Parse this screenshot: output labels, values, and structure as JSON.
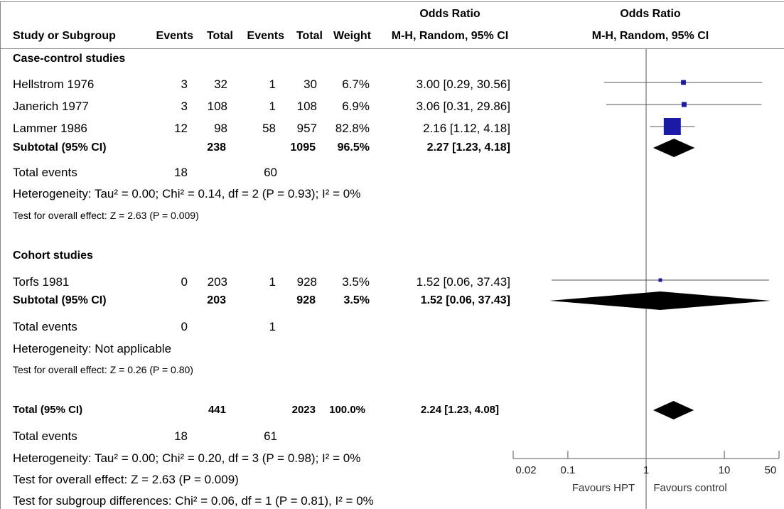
{
  "header": {
    "odds_ratio_left": "Odds Ratio",
    "odds_ratio_right": "Odds Ratio",
    "study_col": "Study or Subgroup",
    "events1": "Events",
    "total1": "Total",
    "events2": "Events",
    "total2": "Total",
    "weight": "Weight",
    "method_left": "M-H, Random, 95% CI",
    "method_right": "M-H, Random, 95% CI"
  },
  "groups": [
    {
      "title": "Case-control studies",
      "studies": [
        {
          "name": "Hellstrom 1976",
          "e1": "3",
          "t1": "32",
          "e2": "1",
          "t2": "30",
          "weight": "6.7%",
          "ci": "3.00 [0.29, 30.56]"
        },
        {
          "name": "Janerich 1977",
          "e1": "3",
          "t1": "108",
          "e2": "1",
          "t2": "108",
          "weight": "6.9%",
          "ci": "3.06 [0.31, 29.86]"
        },
        {
          "name": "Lammer 1986",
          "e1": "12",
          "t1": "98",
          "e2": "58",
          "t2": "957",
          "weight": "82.8%",
          "ci": "2.16 [1.12, 4.18]"
        }
      ],
      "subtotal": {
        "label": "Subtotal (95% CI)",
        "t1": "238",
        "t2": "1095",
        "weight": "96.5%",
        "ci": "2.27 [1.23, 4.18]"
      },
      "total_events": {
        "label": "Total events",
        "e1": "18",
        "e2": "60"
      },
      "heterogeneity": "Heterogeneity: Tau² = 0.00; Chi² = 0.14, df = 2 (P = 0.93); I² = 0%",
      "overall": "Test for overall effect: Z = 2.63 (P = 0.009)"
    },
    {
      "title": "Cohort studies",
      "studies": [
        {
          "name": "Torfs 1981",
          "e1": "0",
          "t1": "203",
          "e2": "1",
          "t2": "928",
          "weight": "3.5%",
          "ci": "1.52 [0.06, 37.43]"
        }
      ],
      "subtotal": {
        "label": "Subtotal (95% CI)",
        "t1": "203",
        "t2": "928",
        "weight": "3.5%",
        "ci": "1.52 [0.06, 37.43]"
      },
      "total_events": {
        "label": "Total events",
        "e1": "0",
        "e2": "1"
      },
      "heterogeneity": "Heterogeneity: Not applicable",
      "overall": "Test for overall effect: Z = 0.26 (P = 0.80)"
    }
  ],
  "total": {
    "label": "Total (95% CI)",
    "t1": "441",
    "t2": "2023",
    "weight": "100.0%",
    "ci": "2.24 [1.23, 4.08]"
  },
  "total_events": {
    "label": "Total events",
    "e1": "18",
    "e2": "61"
  },
  "heterogeneity": "Heterogeneity: Tau² = 0.00; Chi² = 0.20, df = 3 (P = 0.98); I² = 0%",
  "overall": "Test for overall effect: Z = 2.63 (P = 0.009)",
  "subgroup_diff": "Test for subgroup differences: Chi² = 0.06, df = 1 (P = 0.81), I² = 0%",
  "axis": {
    "ticks": [
      "0.02",
      "0.1",
      "1",
      "10",
      "50"
    ],
    "favours_left": "Favours HPT",
    "favours_right": "Favours control"
  },
  "colors": {
    "study_marker": "#1a1aa6",
    "diamond": "#000000",
    "line": "#555555"
  },
  "chart_data": {
    "type": "forest",
    "scale": "log",
    "xlim": [
      0.02,
      50
    ],
    "ticks": [
      0.02,
      0.1,
      1,
      10,
      50
    ],
    "studies": [
      {
        "name": "Hellstrom 1976",
        "or": 3.0,
        "lo": 0.29,
        "hi": 30.56,
        "weight": 6.7
      },
      {
        "name": "Janerich 1977",
        "or": 3.06,
        "lo": 0.31,
        "hi": 29.86,
        "weight": 6.9
      },
      {
        "name": "Lammer 1986",
        "or": 2.16,
        "lo": 1.12,
        "hi": 4.18,
        "weight": 82.8
      },
      {
        "name": "Torfs 1981",
        "or": 1.52,
        "lo": 0.06,
        "hi": 37.43,
        "weight": 3.5
      }
    ],
    "diamonds": [
      {
        "name": "Subtotal (95% CI)",
        "or": 2.27,
        "lo": 1.23,
        "hi": 4.18
      },
      {
        "name": "Subtotal (95% CI)",
        "or": 1.52,
        "lo": 0.06,
        "hi": 37.43
      },
      {
        "name": "Total (95% CI)",
        "or": 2.24,
        "lo": 1.23,
        "hi": 4.08
      }
    ]
  }
}
